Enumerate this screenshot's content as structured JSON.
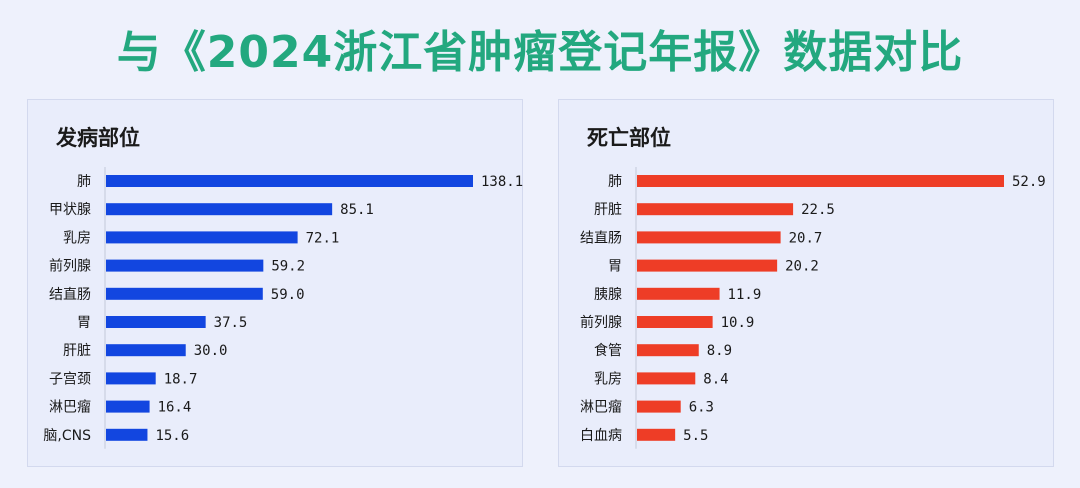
{
  "title": "与《2024浙江省肿瘤登记年报》数据对比",
  "chart_data": [
    {
      "type": "bar",
      "orientation": "horizontal",
      "title": "发病部位",
      "color": "#1246e0",
      "categories": [
        "肺",
        "甲状腺",
        "乳房",
        "前列腺",
        "结直肠",
        "胃",
        "肝脏",
        "子宫颈",
        "淋巴瘤",
        "脑,CNS"
      ],
      "values": [
        138.1,
        85.1,
        72.1,
        59.2,
        59.0,
        37.5,
        30.0,
        18.7,
        16.4,
        15.6
      ],
      "value_labels": [
        "138.1",
        "85.1",
        "72.1",
        "59.2",
        "59.0",
        "37.5",
        "30.0",
        "18.7",
        "16.4",
        "15.6"
      ]
    },
    {
      "type": "bar",
      "orientation": "horizontal",
      "title": "死亡部位",
      "color": "#ee3d26",
      "categories": [
        "肺",
        "肝脏",
        "结直肠",
        "胃",
        "胰腺",
        "前列腺",
        "食管",
        "乳房",
        "淋巴瘤",
        "白血病"
      ],
      "values": [
        52.9,
        22.5,
        20.7,
        20.2,
        11.9,
        10.9,
        8.9,
        8.4,
        6.3,
        5.5
      ],
      "value_labels": [
        "52.9",
        "22.5",
        "20.7",
        "20.2",
        "11.9",
        "10.9",
        "8.9",
        "8.4",
        "6.3",
        "5.5"
      ]
    }
  ]
}
